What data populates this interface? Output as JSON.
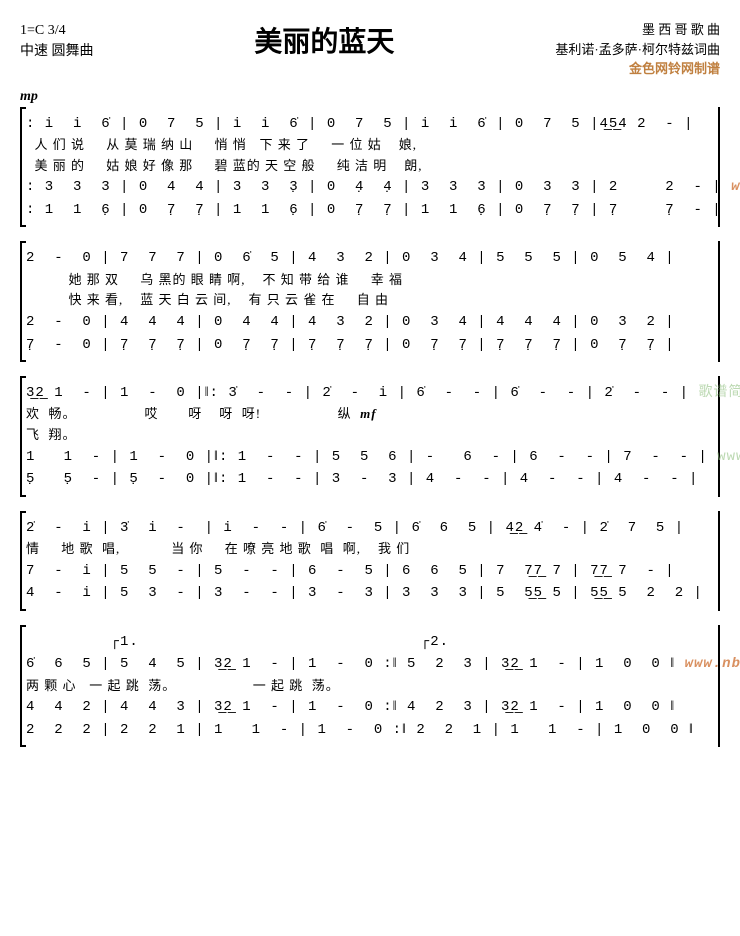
{
  "header": {
    "key_time": "1=C 3/4",
    "tempo": "中速 圆舞曲",
    "title": "美丽的蓝天",
    "origin1": "墨 西 哥  歌  曲",
    "origin2": "基利诺·孟多萨·柯尔特兹词曲",
    "credit": "金色网铃网制谱"
  },
  "dynamics": {
    "mp": "mp",
    "mf": "mf"
  },
  "watermarks": {
    "url1": "www.nbjsfl.com 制谱",
    "url2": "www.jianpu.cn",
    "url3": "www.nbjsfl.com 制谱",
    "gepu": "歌谱简谱网"
  },
  "system1": {
    "voice1": ": i  i  6̇ | 0  7  5 | i  i  6̇ | 0  7  5 | i  i  6̇ | 0  7  5 |4̲5̲4 2  - |",
    "lyric1": "  人 们 说     从 莫 瑞 纳 山     悄 悄   下 来 了     一 位 姑    娘,",
    "lyric2": "  美 丽 的     姑 娘 好 像 那     碧 蓝的 天 空 般     纯 洁 明    朗,",
    "voice2": ": 3  3  3 | 0  4  4 | 3  3  3̣ | 0  4̣  4̣ | 3  3  3 | 0  3  3 | 2     2  - |",
    "voice3": ": 1  1  6̣ | 0  7̣  7̣ | 1  1  6̣ | 0  7̣  7̣ | 1  1  6̣ | 0  7̣  7̣ | 7̣     7̣  - |"
  },
  "system2": {
    "voice1": "2  -  0 | 7  7  7 | 0  6̇  5 | 4  3  2 | 0  3  4 | 5  5  5 | 0  5  4 |",
    "lyric1": "          她 那 双     乌 黑的 眼 睛 啊,    不 知 带 给 谁     幸 福",
    "lyric2": "          快 来 看,    蓝 天 白 云 间,    有 只 云 雀 在     自 由",
    "voice2": "2  -  0 | 4  4  4 | 0  4  4 | 4  3  2 | 0  3  4 | 4  4  4 | 0  3  2 |",
    "voice3": "7̣  -  0 | 7̣  7̣  7̣ | 0  7̣  7̣ | 7̣  7̣  7̣ | 0  7̣  7̣ | 7̣  7̣  7̣ | 0  7̣  7̣ |"
  },
  "system3": {
    "voice1": "3̲2̲ 1  - | 1  -  0 |‖: 3̇  -  - | 2̇  -  i | 6̇  -  - | 6̇  -  - | 2̇  -  - |",
    "lyric1": "欢  畅。                哎       呀    呀  呀!                  纵",
    "lyric2": "飞  翔。",
    "voice2": "1   1  - | 1  -  0 |‖: 1  -  - | 5  5  6 | -   6  - | 6  -  - | 7  -  - |",
    "voice3": "5̣   5̣  - | 5̣  -  0 |‖: 1  -  - | 3  -  3 | 4  -  - | 4  -  - | 4  -  - |"
  },
  "system4": {
    "voice1": "2̇  -  i | 3̇  i  -  | i  -  - | 6̇  -  5 | 6̇  6  5 | 4̲2̲ 4̇  - | 2̇  7  5 |",
    "lyric1": "情     地 歌  唱,            当 你     在 嘹 亮 地 歌  唱  啊,    我 们",
    "voice2": "7  -  i | 5  5  - | 5  -  - | 6  -  5 | 6  6  5 | 7  7̲7̲ 7 | 7̲7̲ 7  - |",
    "voice3": "4  -  i | 5  3  - | 3  -  - | 3  -  3 | 3  3  3 | 5  5̲5̲ 5 | 5̲5̲ 5  2  2 |"
  },
  "system5": {
    "volta1": "1.",
    "volta2": "2.",
    "voice1": "6̇  6  5 | 5  4  5 | 3̲2̲ 1  - | 1  -  0 :‖ 5  2  3 | 3̲2̲ 1  - | 1  0  0 ‖",
    "lyric1": "两 颗 心   一 起 跳  荡。                  一 起 跳  荡。",
    "voice2": "4  4  2 | 4  4  3 | 3̲2̲ 1  - | 1  -  0 :‖ 4  2  3 | 3̲2̲ 1  - | 1  0  0 ‖",
    "voice3": "2  2  2 | 2  2  1 | 1   1  - | 1  -  0 :‖ 2  2  1 | 1   1  - | 1  0  0 ‖"
  }
}
